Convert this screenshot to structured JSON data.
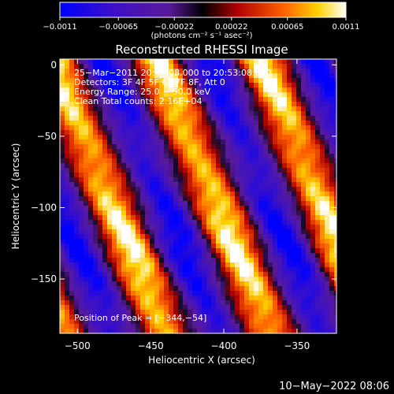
{
  "chart_data": {
    "type": "heatmap",
    "title": "Reconstructed RHESSI Image",
    "xlabel": "Heliocentric X (arcsec)",
    "ylabel": "Heliocentric Y (arcsec)",
    "xlim": [
      -512,
      -323
    ],
    "ylim": [
      -188,
      4
    ],
    "xticks": [
      {
        "value": -500,
        "label": "−500"
      },
      {
        "value": -450,
        "label": "−450"
      },
      {
        "value": -400,
        "label": "−400"
      },
      {
        "value": -350,
        "label": "−350"
      }
    ],
    "yticks": [
      {
        "value": 0,
        "label": "0"
      },
      {
        "value": -50,
        "label": "−50"
      },
      {
        "value": -100,
        "label": "−100"
      },
      {
        "value": -150,
        "label": "−150"
      }
    ],
    "colorbar": {
      "min": -0.0011,
      "max": 0.0011,
      "ticks": [
        {
          "value": -0.0011,
          "label": "−0.0011"
        },
        {
          "value": -0.00065,
          "label": "−0.00065"
        },
        {
          "value": -0.00022,
          "label": "−0.00022"
        },
        {
          "value": 0.00022,
          "label": "0.00022"
        },
        {
          "value": 0.00065,
          "label": "0.00065"
        },
        {
          "value": 0.0011,
          "label": "0.0011"
        }
      ],
      "units_label": "(photons cm⁻² s⁻¹ asec⁻²)"
    },
    "annotations": [
      "25−Mar−2011 20:47:08.000 to 20:53:08.000",
      "Detectors: 3F 4F 5F 6F 7F 8F, Att 0",
      "Energy Range: 25.0 − 50.0 keV",
      "Clean     Total counts: 2.16E+04"
    ],
    "peak_label": "Position of Peak = [−344,−54]",
    "peak": [
      -344,
      -54
    ],
    "colormap": "blue-purple-red-yellow-white (RHESSI standard)",
    "map_description": "Diagonal stripes of alternating positive (red/yellow/white) and negative (blue/purple) emission running from upper-right to lower-left"
  },
  "footer_date": "10−May−2022 08:06"
}
